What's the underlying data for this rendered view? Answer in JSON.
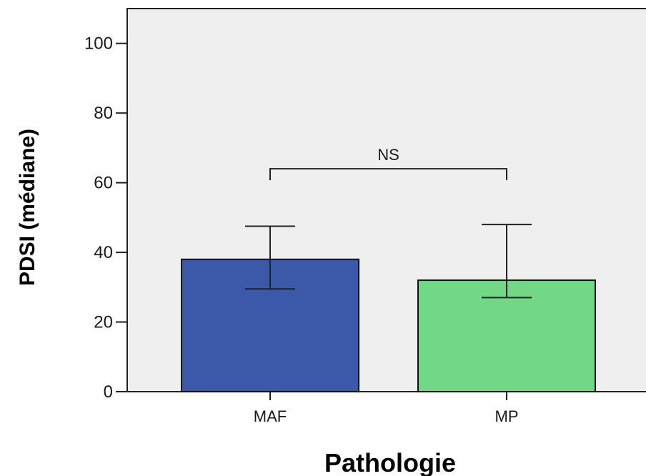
{
  "chart_data": {
    "type": "bar",
    "title": "",
    "xlabel": "Pathologie",
    "ylabel": "PDSI (médiane)",
    "categories": [
      "MAF",
      "MP"
    ],
    "values": [
      38,
      32
    ],
    "error_bars": [
      {
        "low": 29.5,
        "high": 47.5
      },
      {
        "low": 27,
        "high": 48
      }
    ],
    "colors": [
      "#3c58a8",
      "#72d886"
    ],
    "ylim": [
      0,
      110
    ],
    "yticks": [
      0,
      20,
      40,
      60,
      80,
      100
    ],
    "plot_background": "#efefef",
    "grid": false,
    "annotation": {
      "text": "NS",
      "between": [
        "MAF",
        "MP"
      ],
      "at_value": 64
    }
  }
}
